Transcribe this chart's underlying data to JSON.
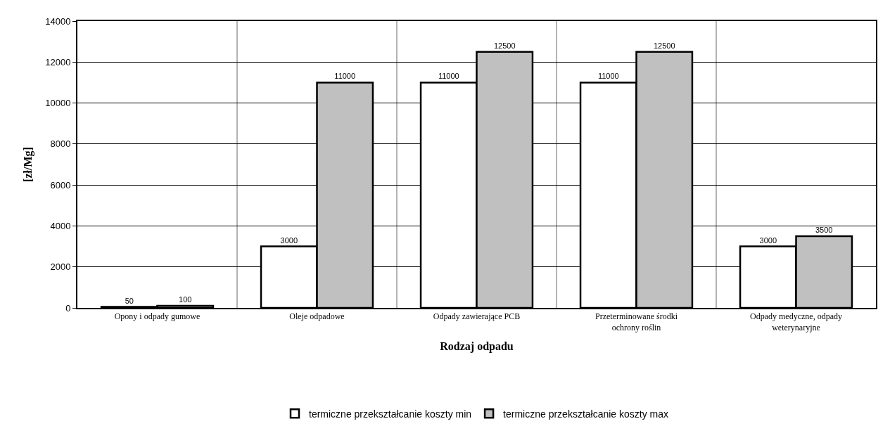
{
  "chart_data": {
    "type": "bar",
    "xlabel": "Rodzaj odpadu",
    "ylabel": "[zł/Mg]",
    "categories": [
      "Opony i odpady gumowe",
      "Oleje odpadowe",
      "Odpady zawierające PCB",
      "Przeterminowane środki ochrony roślin",
      "Odpady medyczne, odpady weterynaryjne"
    ],
    "series": [
      {
        "name": "termiczne przekształcanie koszty min",
        "color": "#ffffff",
        "values": [
          50,
          3000,
          11000,
          11000,
          3000
        ]
      },
      {
        "name": "termiczne przekształcanie koszty max",
        "color": "#c0c0c0",
        "values": [
          100,
          11000,
          12500,
          12500,
          3500
        ]
      }
    ],
    "ylim": [
      0,
      14000
    ],
    "yticks": [
      0,
      2000,
      4000,
      6000,
      8000,
      10000,
      12000,
      14000
    ],
    "grid": true,
    "legend": "bottom",
    "data_labels": true
  }
}
